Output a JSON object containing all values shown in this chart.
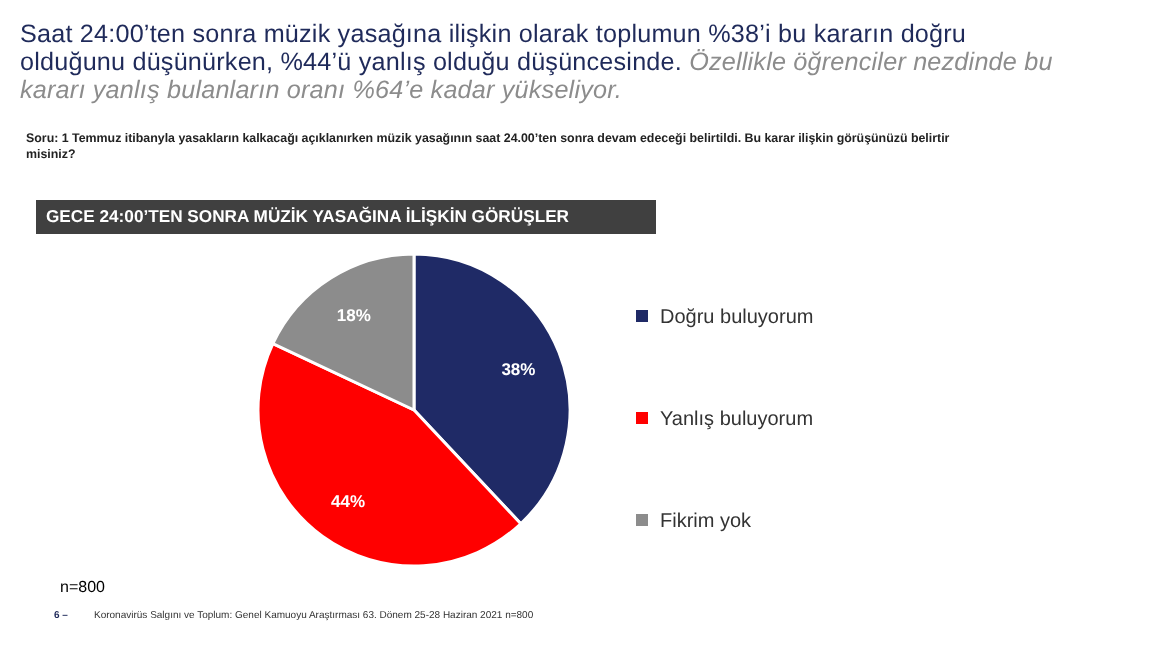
{
  "chart_data": {
    "type": "pie",
    "title": "GECE 24:00’TEN SONRA MÜZİK YASAĞINA İLİŞKİN GÖRÜŞLER",
    "subtitle": "Saat 24:00’ten sonra müzik yasağına ilişkin olarak toplumun %38’i bu kararın doğru olduğunu düşünürken, %44’ü yanlış olduğu düşüncesinde.",
    "annotations": [
      "Özellikle öğrenciler nezdinde bu kararı yanlış bulanların oranı %64’e kadar yükseliyor.",
      "Soru: 1 Temmuz itibanyla yasakların kalkacağı açıklanırken müzik yasağının saat 24.00’ten sonra devam edeceği belirtildi.  Bu karar ilişkin görüşünüzü belirtir misiniz?",
      "n=800",
      "6 –",
      "Koronavirüs  Salgını ve Toplum:  Genel Kamuoyu Araştırması 63.  Dönem  25-28 Haziran  2021  n=800"
    ],
    "categories": [
      "Doğru buluyorum",
      "Yanlış buluyorum",
      "Fikrim yok"
    ],
    "values": [
      38,
      44,
      18
    ],
    "colors": [
      "#1f2a66",
      "#ff0000",
      "#8c8c8c"
    ],
    "value_labels": [
      "38%",
      "44%",
      "18%"
    ],
    "legend": "right"
  }
}
